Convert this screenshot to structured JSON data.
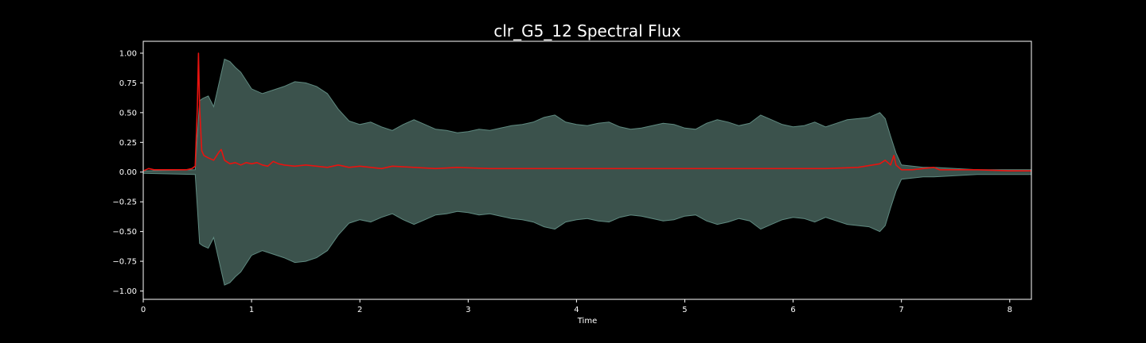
{
  "colors": {
    "background": "#000000",
    "axes": "#ffffff",
    "envelope": "#3b524c",
    "envelope_edge": "#5f8a80",
    "flux": "#e8130f"
  },
  "chart_data": {
    "type": "area",
    "title": "clr_G5_12 Spectral Flux",
    "xlabel": "Time",
    "ylabel": "",
    "xlim": [
      0,
      8.2
    ],
    "ylim": [
      -1.07,
      1.1
    ],
    "grid": false,
    "legend": "none",
    "x_ticks": [
      0,
      1,
      2,
      3,
      4,
      5,
      6,
      7,
      8
    ],
    "x_tick_labels": [
      "0",
      "1",
      "2",
      "3",
      "4",
      "5",
      "6",
      "7",
      "8"
    ],
    "y_ticks": [
      1.0,
      0.75,
      0.5,
      0.25,
      0.0,
      -0.25,
      -0.5,
      -0.75,
      -1.0
    ],
    "y_tick_labels": [
      "1.00",
      "0.75",
      "0.50",
      "0.25",
      "0.00",
      "−0.25",
      "−0.50",
      "−0.75",
      "−1.00"
    ],
    "series": [
      {
        "kind": "waveform-envelope",
        "x": [
          0,
          0.48,
          0.5,
          0.52,
          0.55,
          0.6,
          0.65,
          0.7,
          0.75,
          0.8,
          0.85,
          0.9,
          1.0,
          1.1,
          1.2,
          1.3,
          1.4,
          1.5,
          1.6,
          1.7,
          1.8,
          1.9,
          2.0,
          2.1,
          2.2,
          2.3,
          2.4,
          2.5,
          2.6,
          2.7,
          2.8,
          2.9,
          3.0,
          3.1,
          3.2,
          3.3,
          3.4,
          3.5,
          3.6,
          3.7,
          3.8,
          3.9,
          4.0,
          4.1,
          4.2,
          4.3,
          4.4,
          4.5,
          4.6,
          4.7,
          4.8,
          4.9,
          5.0,
          5.1,
          5.2,
          5.3,
          5.4,
          5.5,
          5.6,
          5.7,
          5.8,
          5.9,
          6.0,
          6.1,
          6.2,
          6.3,
          6.4,
          6.5,
          6.6,
          6.7,
          6.8,
          6.85,
          6.9,
          6.95,
          7.0,
          7.1,
          7.2,
          7.3,
          7.5,
          7.7,
          8.0,
          8.2
        ],
        "upper": [
          0.01,
          0.02,
          0.3,
          0.6,
          0.62,
          0.64,
          0.55,
          0.75,
          0.95,
          0.93,
          0.88,
          0.84,
          0.7,
          0.66,
          0.69,
          0.72,
          0.76,
          0.75,
          0.72,
          0.66,
          0.53,
          0.43,
          0.4,
          0.42,
          0.38,
          0.35,
          0.4,
          0.44,
          0.4,
          0.36,
          0.35,
          0.33,
          0.34,
          0.36,
          0.35,
          0.37,
          0.39,
          0.4,
          0.42,
          0.46,
          0.48,
          0.42,
          0.4,
          0.39,
          0.41,
          0.42,
          0.38,
          0.36,
          0.37,
          0.39,
          0.41,
          0.4,
          0.37,
          0.36,
          0.41,
          0.44,
          0.42,
          0.39,
          0.41,
          0.48,
          0.44,
          0.4,
          0.38,
          0.39,
          0.42,
          0.38,
          0.41,
          0.44,
          0.45,
          0.46,
          0.5,
          0.45,
          0.3,
          0.16,
          0.06,
          0.05,
          0.04,
          0.04,
          0.03,
          0.02,
          0.02,
          0.02
        ],
        "lower": [
          -0.01,
          -0.02,
          -0.3,
          -0.6,
          -0.62,
          -0.64,
          -0.55,
          -0.75,
          -0.95,
          -0.93,
          -0.88,
          -0.84,
          -0.7,
          -0.66,
          -0.69,
          -0.72,
          -0.76,
          -0.75,
          -0.72,
          -0.66,
          -0.53,
          -0.43,
          -0.4,
          -0.42,
          -0.38,
          -0.35,
          -0.4,
          -0.44,
          -0.4,
          -0.36,
          -0.35,
          -0.33,
          -0.34,
          -0.36,
          -0.35,
          -0.37,
          -0.39,
          -0.4,
          -0.42,
          -0.46,
          -0.48,
          -0.42,
          -0.4,
          -0.39,
          -0.41,
          -0.42,
          -0.38,
          -0.36,
          -0.37,
          -0.39,
          -0.41,
          -0.4,
          -0.37,
          -0.36,
          -0.41,
          -0.44,
          -0.42,
          -0.39,
          -0.41,
          -0.48,
          -0.44,
          -0.4,
          -0.38,
          -0.39,
          -0.42,
          -0.38,
          -0.41,
          -0.44,
          -0.45,
          -0.46,
          -0.5,
          -0.45,
          -0.3,
          -0.16,
          -0.06,
          -0.05,
          -0.04,
          -0.04,
          -0.03,
          -0.02,
          -0.02,
          -0.02
        ]
      },
      {
        "kind": "line",
        "x": [
          0,
          0.05,
          0.1,
          0.2,
          0.3,
          0.4,
          0.45,
          0.48,
          0.5,
          0.51,
          0.52,
          0.54,
          0.56,
          0.6,
          0.65,
          0.7,
          0.72,
          0.75,
          0.8,
          0.85,
          0.9,
          0.95,
          1.0,
          1.05,
          1.1,
          1.15,
          1.2,
          1.25,
          1.3,
          1.4,
          1.5,
          1.6,
          1.7,
          1.8,
          1.9,
          2.0,
          2.1,
          2.2,
          2.3,
          2.5,
          2.7,
          2.9,
          3.2,
          3.5,
          4.0,
          4.5,
          5.0,
          5.5,
          6.0,
          6.3,
          6.6,
          6.8,
          6.85,
          6.9,
          6.93,
          6.95,
          7.0,
          7.1,
          7.2,
          7.3,
          7.35,
          7.5,
          7.7,
          8.0,
          8.2
        ],
        "y": [
          0.01,
          0.03,
          0.02,
          0.02,
          0.02,
          0.02,
          0.03,
          0.05,
          0.55,
          1.0,
          0.55,
          0.18,
          0.14,
          0.12,
          0.1,
          0.17,
          0.19,
          0.1,
          0.07,
          0.08,
          0.06,
          0.08,
          0.07,
          0.08,
          0.06,
          0.05,
          0.09,
          0.07,
          0.06,
          0.05,
          0.06,
          0.05,
          0.04,
          0.06,
          0.04,
          0.05,
          0.04,
          0.03,
          0.05,
          0.04,
          0.03,
          0.04,
          0.03,
          0.03,
          0.03,
          0.03,
          0.03,
          0.03,
          0.03,
          0.03,
          0.04,
          0.07,
          0.1,
          0.06,
          0.14,
          0.06,
          0.02,
          0.02,
          0.03,
          0.04,
          0.02,
          0.02,
          0.02,
          0.01,
          0.01
        ]
      }
    ]
  }
}
